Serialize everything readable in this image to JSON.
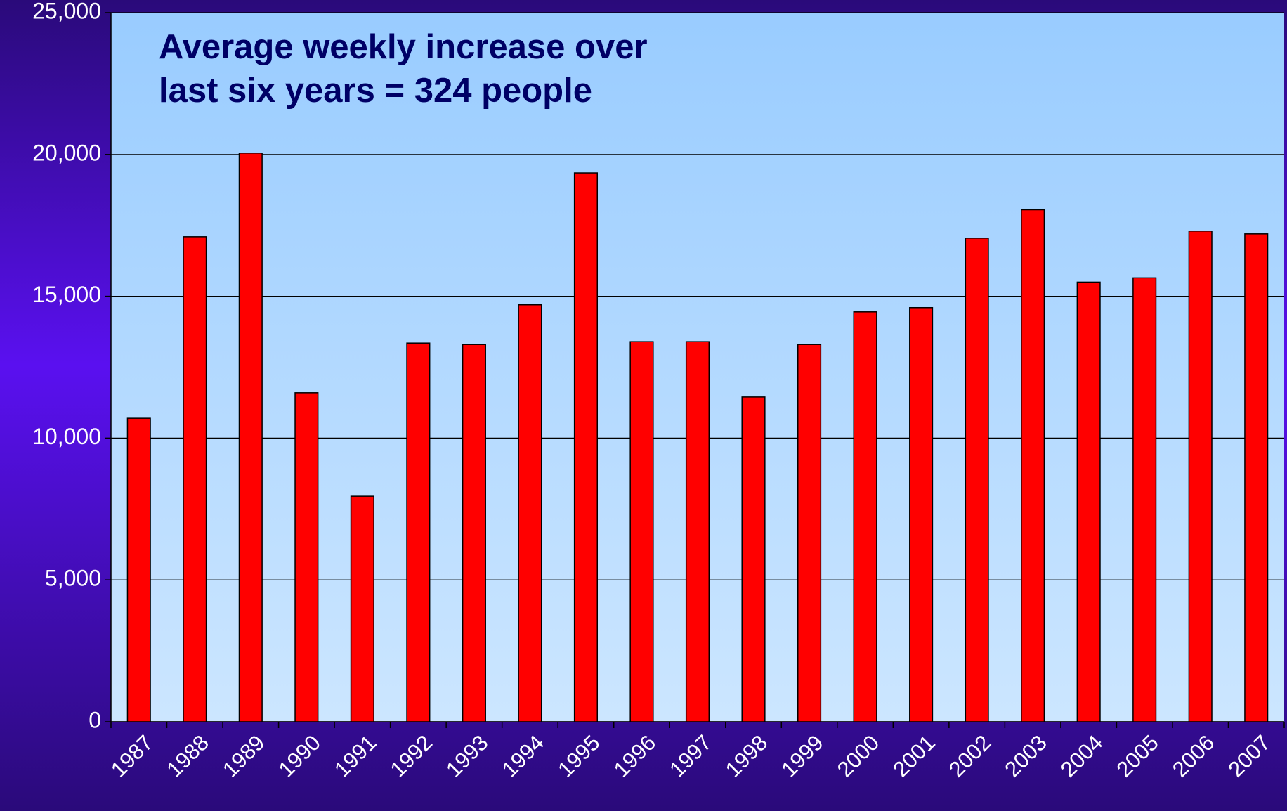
{
  "chart_data": {
    "type": "bar",
    "annotation": [
      "Average weekly increase over",
      "last six years = 324 people"
    ],
    "categories": [
      "1987",
      "1988",
      "1989",
      "1990",
      "1991",
      "1992",
      "1993",
      "1994",
      "1995",
      "1996",
      "1997",
      "1998",
      "1999",
      "2000",
      "2001",
      "2002",
      "2003",
      "2004",
      "2005",
      "2006",
      "2007"
    ],
    "values": [
      10700,
      17100,
      20050,
      11600,
      7950,
      13350,
      13300,
      14700,
      19350,
      13400,
      13400,
      11450,
      13300,
      14450,
      14600,
      17050,
      18050,
      15500,
      15650,
      17300,
      17200
    ],
    "color": "#ff0000",
    "ylim": [
      0,
      25000
    ],
    "yticks": [
      0,
      {
        "value": 5000,
        "label": "5,000"
      },
      {
        "value": 10000,
        "label": "10,000"
      },
      {
        "value": 15000,
        "label": "15,000"
      },
      {
        "value": 20000,
        "label": "20,000"
      },
      {
        "value": 25000,
        "label": "25,000"
      }
    ],
    "grid": true
  }
}
